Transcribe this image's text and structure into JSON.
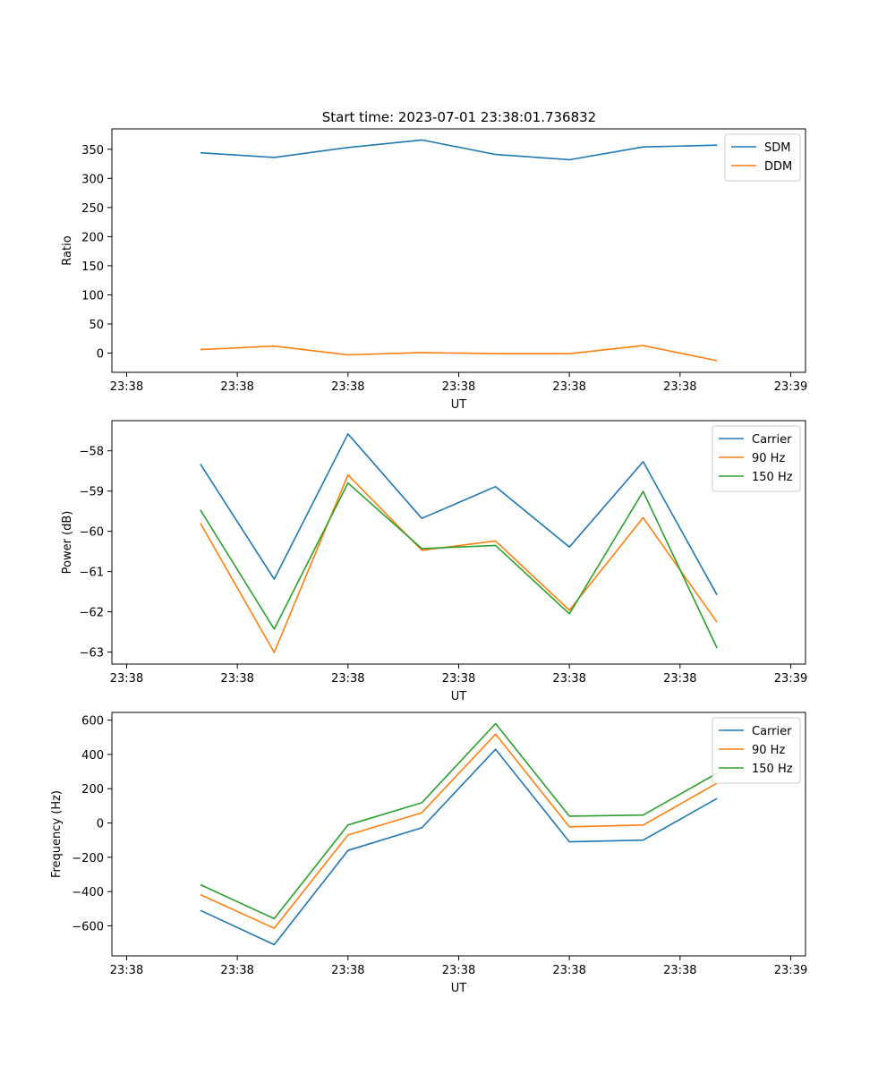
{
  "title": "Start time: 2023-07-01 23:38:01.736832",
  "colors": {
    "blue": "#1f77b4",
    "orange": "#ff7f0e",
    "green": "#2ca02c"
  },
  "chart_data": [
    {
      "type": "line",
      "title": "Start time: 2023-07-01 23:38:01.736832",
      "xlabel": "UT",
      "ylabel": "Ratio",
      "x": [
        1,
        2,
        3,
        4,
        5,
        6,
        7,
        8
      ],
      "xlim": [
        -0.2,
        9.2
      ],
      "x_ticks": [
        0,
        1.5,
        3,
        4.5,
        6,
        7.5,
        9
      ],
      "x_tick_labels": [
        "23:38",
        "23:38",
        "23:38",
        "23:38",
        "23:38",
        "23:38",
        "23:39"
      ],
      "ylim": [
        -33,
        385
      ],
      "y_ticks": [
        0,
        50,
        100,
        150,
        200,
        250,
        300,
        350
      ],
      "y_tick_labels": [
        "0",
        "50",
        "100",
        "150",
        "200",
        "250",
        "300",
        "350"
      ],
      "legend_position": "upper-right",
      "series": [
        {
          "name": "SDM",
          "color": "#1f77b4",
          "values": [
            344,
            336,
            353,
            366,
            341,
            332,
            354,
            357
          ]
        },
        {
          "name": "DDM",
          "color": "#ff7f0e",
          "values": [
            6,
            12,
            -3,
            1,
            -1,
            -1,
            13,
            -13
          ]
        }
      ]
    },
    {
      "type": "line",
      "title": "",
      "xlabel": "UT",
      "ylabel": "Power (dB)",
      "x": [
        1,
        2,
        3,
        4,
        5,
        6,
        7,
        8
      ],
      "xlim": [
        -0.2,
        9.2
      ],
      "x_ticks": [
        0,
        1.5,
        3,
        4.5,
        6,
        7.5,
        9
      ],
      "x_tick_labels": [
        "23:38",
        "23:38",
        "23:38",
        "23:38",
        "23:38",
        "23:38",
        "23:39"
      ],
      "ylim": [
        -63.3,
        -57.25
      ],
      "y_ticks": [
        -63,
        -62,
        -61,
        -60,
        -59,
        -58
      ],
      "y_tick_labels": [
        "−63",
        "−62",
        "−61",
        "−60",
        "−59",
        "−58"
      ],
      "legend_position": "upper-right",
      "series": [
        {
          "name": "Carrier",
          "color": "#1f77b4",
          "values": [
            -58.33,
            -61.19,
            -57.58,
            -59.68,
            -58.89,
            -60.39,
            -58.27,
            -61.58
          ]
        },
        {
          "name": "90 Hz",
          "color": "#ff7f0e",
          "values": [
            -59.8,
            -63.01,
            -58.6,
            -60.47,
            -60.24,
            -61.96,
            -59.66,
            -62.26
          ]
        },
        {
          "name": "150 Hz",
          "color": "#2ca02c",
          "values": [
            -59.47,
            -62.43,
            -58.8,
            -60.43,
            -60.35,
            -62.05,
            -59.01,
            -62.9
          ]
        }
      ]
    },
    {
      "type": "line",
      "title": "",
      "xlabel": "UT",
      "ylabel": "Frequency (Hz)",
      "x": [
        1,
        2,
        3,
        4,
        5,
        6,
        7,
        8
      ],
      "xlim": [
        -0.2,
        9.2
      ],
      "x_ticks": [
        0,
        1.5,
        3,
        4.5,
        6,
        7.5,
        9
      ],
      "x_tick_labels": [
        "23:38",
        "23:38",
        "23:38",
        "23:38",
        "23:38",
        "23:38",
        "23:39"
      ],
      "ylim": [
        -775,
        645
      ],
      "y_ticks": [
        -600,
        -400,
        -200,
        0,
        200,
        400,
        600
      ],
      "y_tick_labels": [
        "−600",
        "−400",
        "−200",
        "0",
        "200",
        "400",
        "600"
      ],
      "legend_position": "upper-right",
      "series": [
        {
          "name": "Carrier",
          "color": "#1f77b4",
          "values": [
            -510,
            -710,
            -160,
            -28,
            430,
            -110,
            -100,
            143
          ]
        },
        {
          "name": "90 Hz",
          "color": "#ff7f0e",
          "values": [
            -418,
            -614,
            -70,
            60,
            518,
            -22,
            -12,
            232
          ]
        },
        {
          "name": "150 Hz",
          "color": "#2ca02c",
          "values": [
            -360,
            -558,
            -12,
            118,
            580,
            40,
            46,
            290
          ]
        }
      ]
    }
  ]
}
